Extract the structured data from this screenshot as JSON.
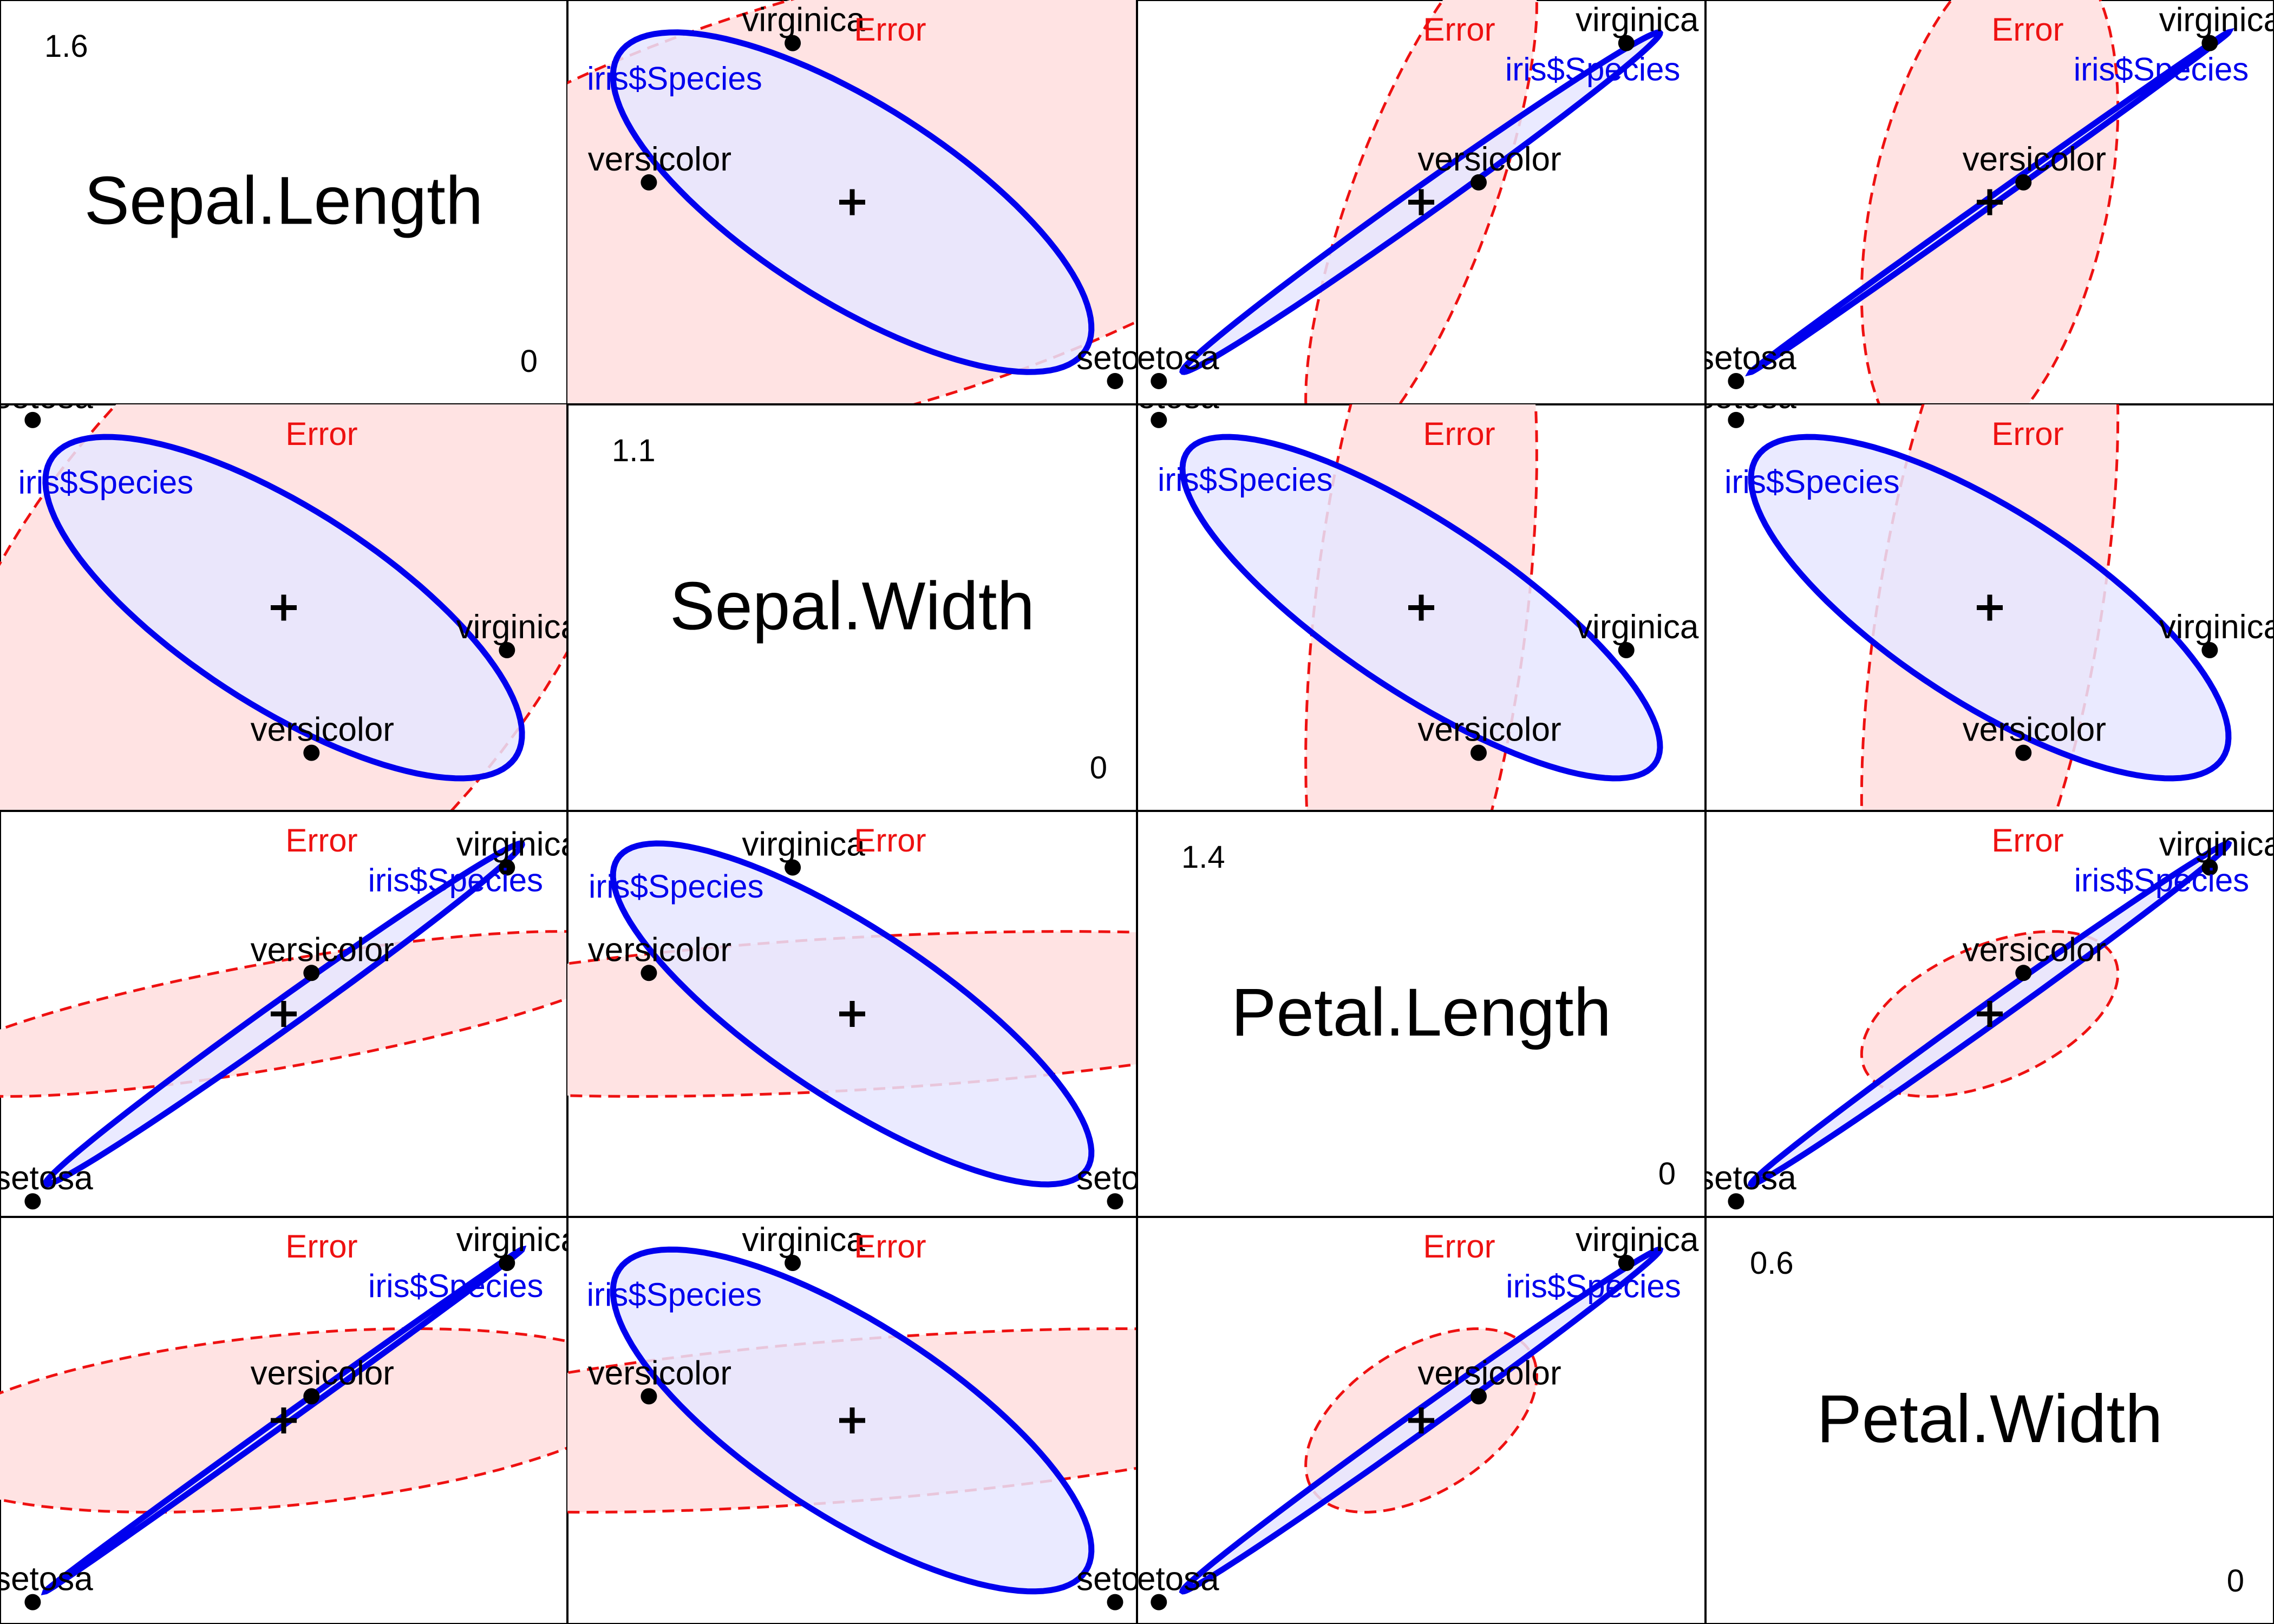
{
  "chart_data": {
    "type": "scatter",
    "title": "",
    "variables": [
      "Sepal.Length",
      "Sepal.Width",
      "Petal.Length",
      "Petal.Width"
    ],
    "diagonal_max": [
      1.6,
      1.1,
      1.4,
      0.6
    ],
    "diagonal_min": [
      0,
      0,
      0,
      0
    ],
    "groups": [
      "setosa",
      "versicolor",
      "virginica"
    ],
    "group_means": {
      "setosa": [
        -0.837,
        0.371,
        -2.296,
        -0.953
      ],
      "versicolor": [
        0.093,
        -0.287,
        0.502,
        0.127
      ],
      "virginica": [
        0.745,
        -0.084,
        1.794,
        0.827
      ]
    },
    "H_cov": [
      [
        0.632,
        -0.199,
        1.652,
        0.713
      ],
      [
        -0.199,
        0.114,
        -0.573,
        -0.229
      ],
      [
        1.652,
        -0.573,
        4.364,
        1.869
      ],
      [
        0.713,
        -0.229,
        1.869,
        0.805
      ]
    ],
    "E_cov": [
      [
        0.265,
        0.093,
        0.168,
        0.038
      ],
      [
        0.093,
        0.115,
        0.055,
        0.033
      ],
      [
        0.168,
        0.055,
        0.185,
        0.043
      ],
      [
        0.038,
        0.033,
        0.043,
        0.042
      ]
    ],
    "hypothesis_label": "iris$Species",
    "error_label": "Error",
    "colors": {
      "hypothesis": "#0000ee",
      "hypothesis_fill": "#e6e6ff",
      "error": "#ee1111",
      "error_fill": "#ffe3e3",
      "points": "#000000"
    }
  }
}
